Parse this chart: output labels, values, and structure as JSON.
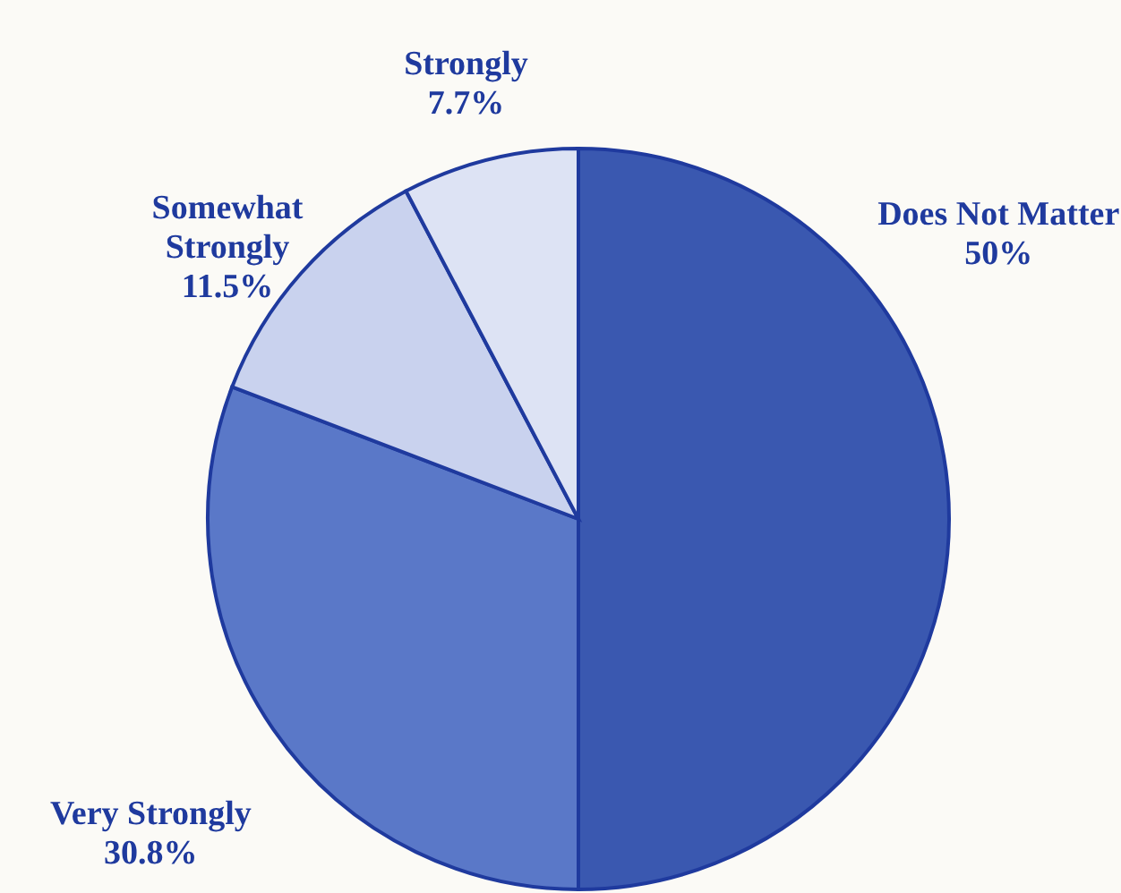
{
  "chart_data": {
    "type": "pie",
    "categories": [
      "Does Not Matter",
      "Very Strongly",
      "Somewhat Strongly",
      "Strongly"
    ],
    "values": [
      50,
      30.8,
      11.5,
      7.7
    ],
    "value_labels": [
      "50%",
      "30.8%",
      "11.5%",
      "7.7%"
    ],
    "colors": [
      "#3a58b0",
      "#5a78c8",
      "#c9d2ee",
      "#dde3f4"
    ]
  }
}
